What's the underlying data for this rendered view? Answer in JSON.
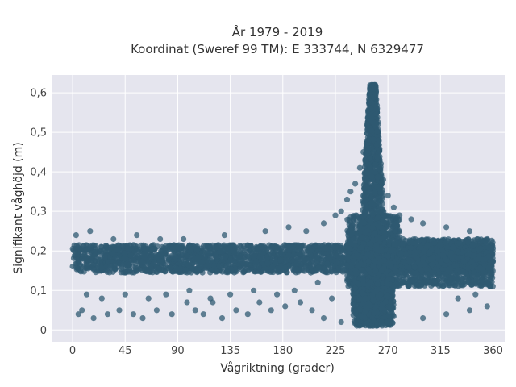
{
  "chart_data": {
    "type": "scatter",
    "title_line1": "År 1979 - 2019",
    "title_line2": "Koordinat (Sweref 99 TM): E 333744, N 6329477",
    "xlabel": "Vågriktning (grader)",
    "ylabel": "Signifikant våghöjd (m)",
    "xlim": [
      -18,
      370
    ],
    "ylim": [
      -0.03,
      0.645
    ],
    "x_ticks": [
      0,
      45,
      90,
      135,
      180,
      225,
      270,
      315,
      360
    ],
    "x_tick_labels": [
      "0",
      "45",
      "90",
      "135",
      "180",
      "225",
      "270",
      "315",
      "360"
    ],
    "y_ticks": [
      0,
      0.1,
      0.2,
      0.3,
      0.4,
      0.5,
      0.6
    ],
    "y_tick_labels": [
      "0",
      "0,1",
      "0,2",
      "0,3",
      "0,4",
      "0,5",
      "0,6"
    ],
    "grid": true,
    "legend": "none",
    "marker_color": "#2f5a72",
    "background_color": "#e5e5ee",
    "series": [
      {
        "dense_regions": [
          {
            "x": [
              0,
              360
            ],
            "y_center": 0.18,
            "y_spread": 0.035
          },
          {
            "x": [
              235,
              280
            ],
            "y_center": 0.2,
            "y_spread": 0.09
          },
          {
            "x": [
              250,
              265
            ],
            "y_center": 0.33,
            "y_spread": 0.2
          },
          {
            "x": [
              240,
              275
            ],
            "y_center": 0.07,
            "y_spread": 0.06
          },
          {
            "x": [
              280,
              360
            ],
            "y_center": 0.17,
            "y_spread": 0.06
          }
        ],
        "points": [
          [
            5,
            0.04
          ],
          [
            8,
            0.05
          ],
          [
            18,
            0.03
          ],
          [
            30,
            0.04
          ],
          [
            40,
            0.05
          ],
          [
            52,
            0.04
          ],
          [
            60,
            0.03
          ],
          [
            72,
            0.05
          ],
          [
            85,
            0.04
          ],
          [
            98,
            0.07
          ],
          [
            105,
            0.05
          ],
          [
            112,
            0.04
          ],
          [
            120,
            0.07
          ],
          [
            128,
            0.03
          ],
          [
            140,
            0.05
          ],
          [
            150,
            0.04
          ],
          [
            160,
            0.07
          ],
          [
            170,
            0.05
          ],
          [
            182,
            0.06
          ],
          [
            195,
            0.07
          ],
          [
            205,
            0.05
          ],
          [
            215,
            0.03
          ],
          [
            222,
            0.08
          ],
          [
            230,
            0.02
          ],
          [
            12,
            0.09
          ],
          [
            25,
            0.08
          ],
          [
            45,
            0.09
          ],
          [
            65,
            0.08
          ],
          [
            80,
            0.09
          ],
          [
            100,
            0.1
          ],
          [
            118,
            0.08
          ],
          [
            135,
            0.09
          ],
          [
            155,
            0.1
          ],
          [
            175,
            0.09
          ],
          [
            190,
            0.1
          ],
          [
            210,
            0.12
          ],
          [
            3,
            0.24
          ],
          [
            15,
            0.25
          ],
          [
            35,
            0.23
          ],
          [
            55,
            0.24
          ],
          [
            75,
            0.23
          ],
          [
            95,
            0.23
          ],
          [
            130,
            0.24
          ],
          [
            165,
            0.25
          ],
          [
            185,
            0.26
          ],
          [
            200,
            0.25
          ],
          [
            215,
            0.27
          ],
          [
            225,
            0.29
          ],
          [
            230,
            0.3
          ],
          [
            235,
            0.33
          ],
          [
            238,
            0.35
          ],
          [
            242,
            0.37
          ],
          [
            246,
            0.41
          ],
          [
            249,
            0.45
          ],
          [
            252,
            0.52
          ],
          [
            254,
            0.58
          ],
          [
            256,
            0.62
          ],
          [
            258,
            0.61
          ],
          [
            260,
            0.56
          ],
          [
            262,
            0.48
          ],
          [
            264,
            0.42
          ],
          [
            266,
            0.38
          ],
          [
            270,
            0.34
          ],
          [
            275,
            0.31
          ],
          [
            280,
            0.29
          ],
          [
            290,
            0.28
          ],
          [
            300,
            0.27
          ],
          [
            320,
            0.26
          ],
          [
            340,
            0.25
          ],
          [
            355,
            0.23
          ],
          [
            300,
            0.03
          ],
          [
            320,
            0.04
          ],
          [
            340,
            0.05
          ],
          [
            355,
            0.06
          ],
          [
            345,
            0.09
          ],
          [
            330,
            0.08
          ]
        ]
      }
    ]
  }
}
